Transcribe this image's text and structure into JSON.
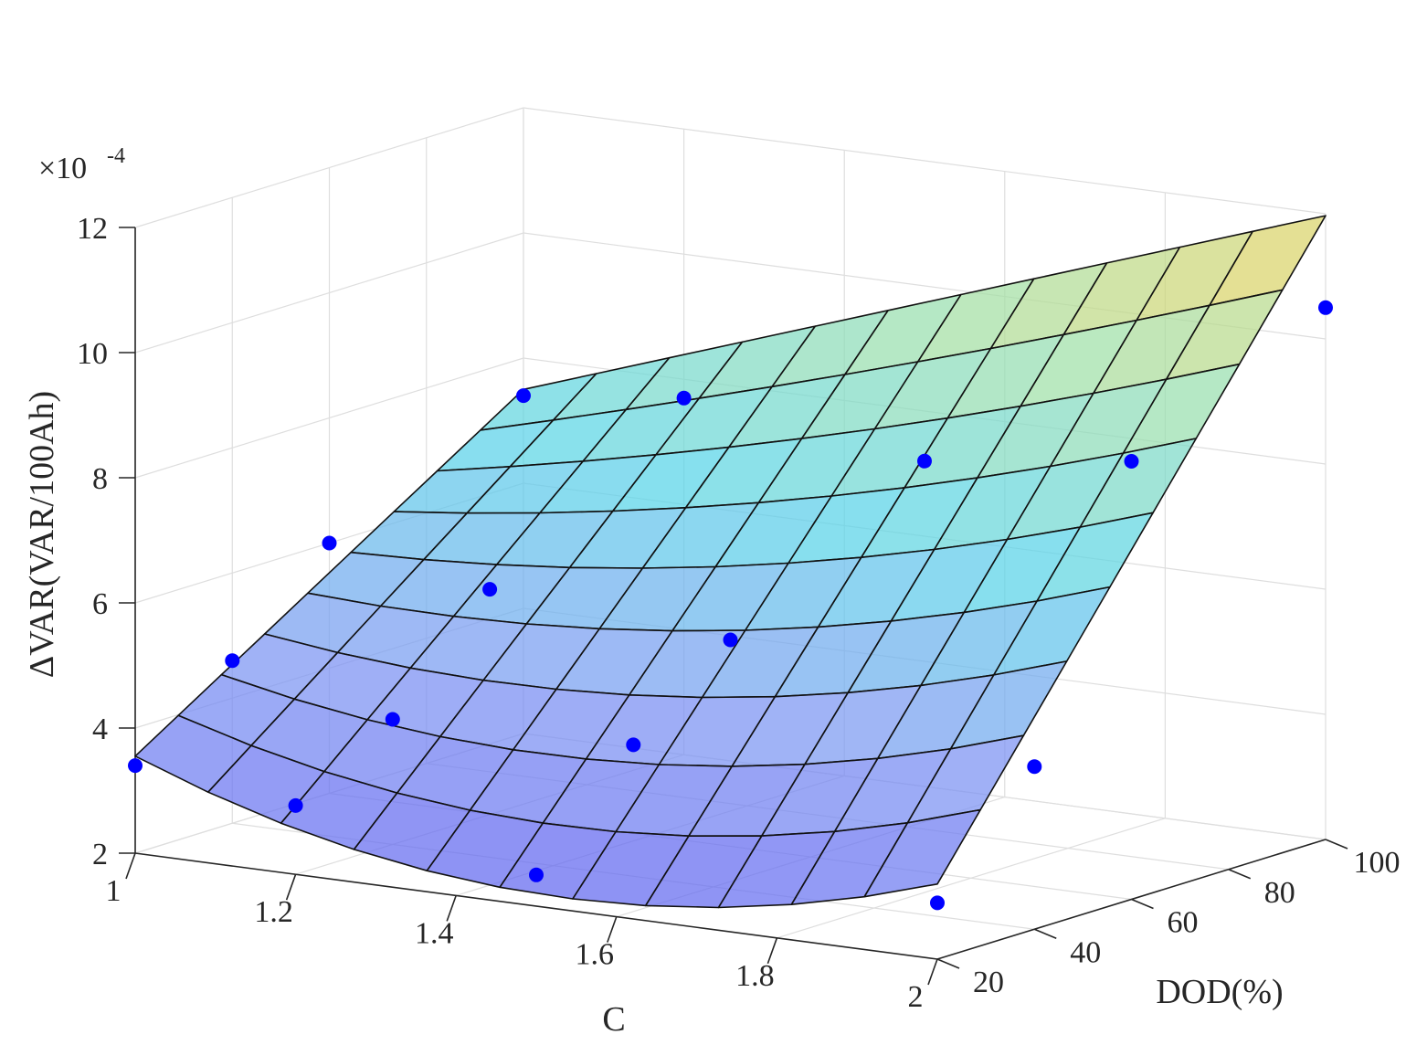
{
  "chart_data": {
    "type": "surface",
    "title": "",
    "xlabel": "C",
    "ylabel": "DOD(%)",
    "zlabel": "ΔVAR(VAR/100Ah)",
    "z_exponent_label": "×10",
    "z_exponent": "-4",
    "xlim": [
      1,
      2
    ],
    "ylim": [
      20,
      100
    ],
    "zlim": [
      2,
      12
    ],
    "x_ticks": [
      "1",
      "1.2",
      "1.4",
      "1.6",
      "1.8",
      "2"
    ],
    "y_ticks": [
      "20",
      "40",
      "60",
      "80",
      "100"
    ],
    "z_ticks": [
      "2",
      "4",
      "6",
      "8",
      "10",
      "12"
    ],
    "grid": true,
    "colormap": [
      "#5d5ff0",
      "#7d96f2",
      "#58d4e8",
      "#9fe0a8",
      "#f2cf52"
    ],
    "surface_grid": {
      "x_steps": 11,
      "y_steps": 9
    },
    "surface_corner_values": {
      "x1_y20": 3.55,
      "x2_y20": 3.2,
      "x1_y100": 7.5,
      "x2_y100": 11.97,
      "x1.5_y20": 2.2
    },
    "scatter": {
      "color": "#0000ff",
      "points": [
        {
          "x": 1.0,
          "y": 20,
          "z": 3.4
        },
        {
          "x": 1.0,
          "y": 40,
          "z": 4.6
        },
        {
          "x": 1.0,
          "y": 60,
          "z": 6.0
        },
        {
          "x": 1.0,
          "y": 100,
          "z": 7.4
        },
        {
          "x": 1.2,
          "y": 20,
          "z": 3.1
        },
        {
          "x": 1.2,
          "y": 40,
          "z": 4.0
        },
        {
          "x": 1.2,
          "y": 60,
          "z": 5.6
        },
        {
          "x": 1.2,
          "y": 100,
          "z": 7.7
        },
        {
          "x": 1.5,
          "y": 20,
          "z": 2.5
        },
        {
          "x": 1.5,
          "y": 40,
          "z": 4.1
        },
        {
          "x": 1.5,
          "y": 60,
          "z": 5.3
        },
        {
          "x": 1.5,
          "y": 100,
          "z": 7.2
        },
        {
          "x": 2.0,
          "y": 20,
          "z": 2.9
        },
        {
          "x": 2.0,
          "y": 40,
          "z": 4.6
        },
        {
          "x": 2.0,
          "y": 60,
          "z": 9.0
        },
        {
          "x": 2.0,
          "y": 100,
          "z": 10.5
        }
      ]
    }
  }
}
